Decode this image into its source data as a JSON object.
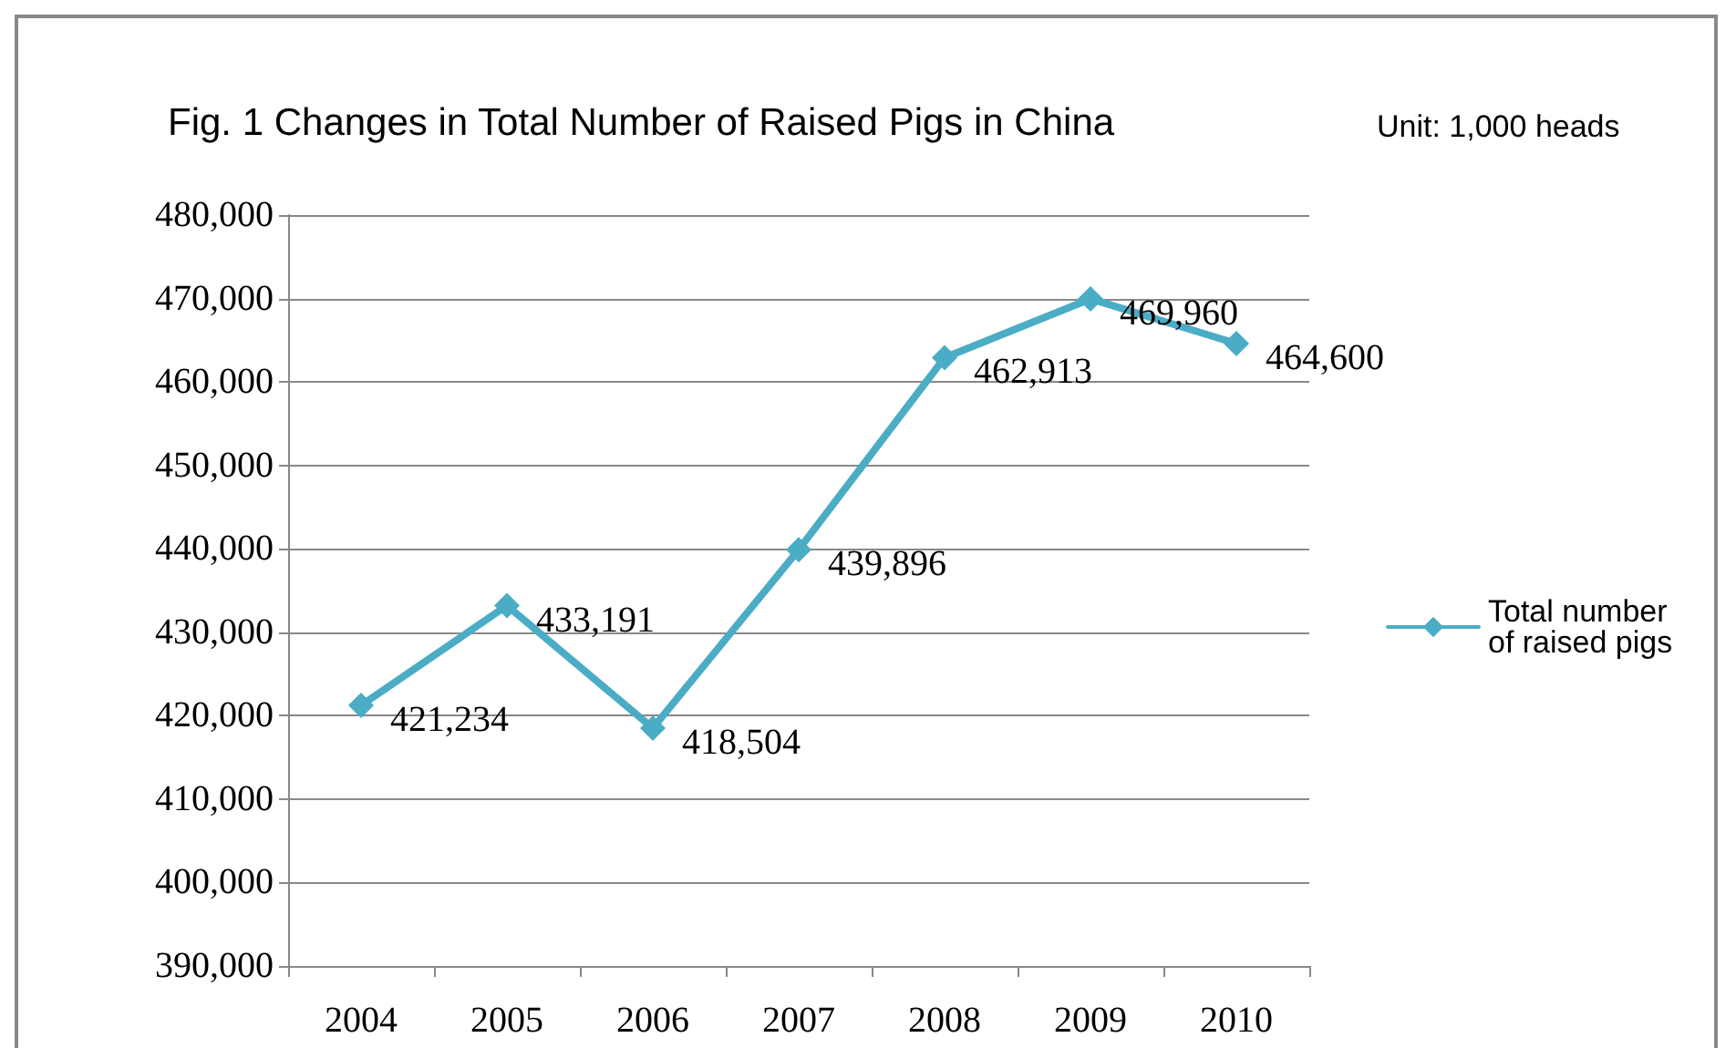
{
  "chart_data": {
    "type": "line",
    "title": "Fig. 1 Changes in Total Number of Raised Pigs in China",
    "annotations": [
      "Unit: 1,000 heads"
    ],
    "categories": [
      "2004",
      "2005",
      "2006",
      "2007",
      "2008",
      "2009",
      "2010"
    ],
    "series": [
      {
        "name": "Total number of raised pigs",
        "color": "#4bacc6",
        "values": [
          421234,
          433191,
          418504,
          439896,
          462913,
          469960,
          464600
        ],
        "value_labels": [
          "421,234",
          "433,191",
          "418,504",
          "439,896",
          "462,913",
          "469,960",
          "464,600"
        ]
      }
    ],
    "ylim": [
      390000,
      480000
    ],
    "yticks": [
      {
        "value": 390000,
        "label": "390,000"
      },
      {
        "value": 400000,
        "label": "400,000"
      },
      {
        "value": 410000,
        "label": "410,000"
      },
      {
        "value": 420000,
        "label": "420,000"
      },
      {
        "value": 430000,
        "label": "430,000"
      },
      {
        "value": 440000,
        "label": "440,000"
      },
      {
        "value": 450000,
        "label": "450,000"
      },
      {
        "value": 460000,
        "label": "460,000"
      },
      {
        "value": 470000,
        "label": "470,000"
      },
      {
        "value": 480000,
        "label": "480,000"
      }
    ],
    "grid": "y",
    "legend": "right",
    "marker": "diamond",
    "line_style": "solid"
  }
}
